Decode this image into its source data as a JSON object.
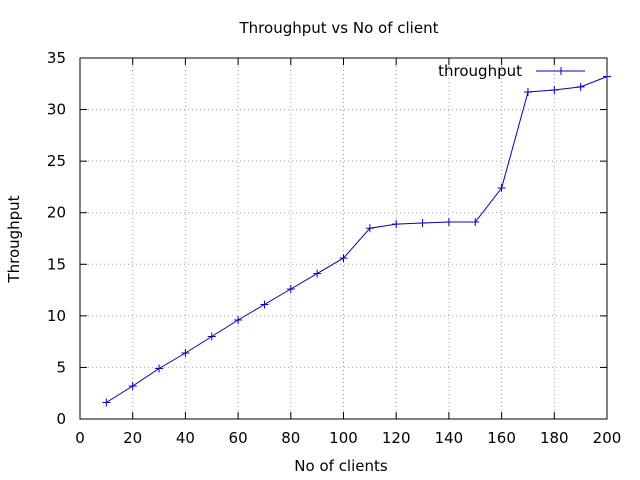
{
  "chart_data": {
    "type": "line",
    "title": "Throughput vs No of client",
    "xlabel": "No of clients",
    "ylabel": "Throughput",
    "xlim": [
      0,
      200
    ],
    "ylim": [
      0,
      35
    ],
    "xticks": [
      0,
      20,
      40,
      60,
      80,
      100,
      120,
      140,
      160,
      180,
      200
    ],
    "yticks": [
      0,
      5,
      10,
      15,
      20,
      25,
      30,
      35
    ],
    "grid": true,
    "legend_position": "top-right",
    "series": [
      {
        "name": "throughput",
        "color": "#0000cc",
        "marker": "plus",
        "x": [
          10,
          20,
          30,
          40,
          50,
          60,
          70,
          80,
          90,
          100,
          110,
          120,
          130,
          140,
          150,
          160,
          170,
          180,
          190,
          200
        ],
        "y": [
          1.6,
          3.2,
          4.9,
          6.4,
          8.0,
          9.6,
          11.1,
          12.6,
          14.1,
          15.6,
          18.5,
          18.9,
          19.0,
          19.1,
          19.1,
          22.4,
          31.7,
          31.9,
          32.2,
          33.2
        ]
      }
    ]
  }
}
